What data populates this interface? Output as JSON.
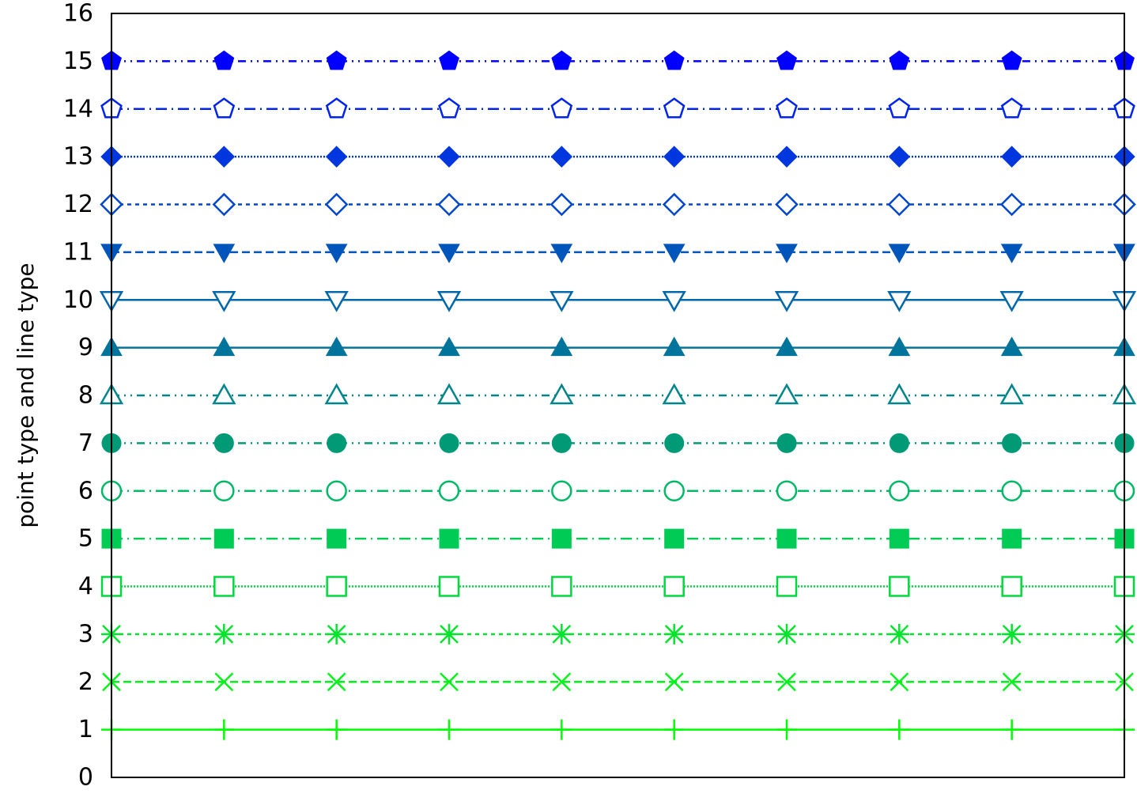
{
  "chart_data": {
    "type": "line",
    "title": "",
    "xlabel": "",
    "ylabel": "point type and line type",
    "x": [
      1,
      2,
      3,
      4,
      5,
      6,
      7,
      8,
      9,
      10
    ],
    "xlim": [
      1,
      10
    ],
    "ylim": [
      0,
      16
    ],
    "yticks": [
      0,
      1,
      2,
      3,
      4,
      5,
      6,
      7,
      8,
      9,
      10,
      11,
      12,
      13,
      14,
      15,
      16
    ],
    "grid": false,
    "legend": "none",
    "series": [
      {
        "value": 1,
        "marker": "plus",
        "dash": "solid",
        "color": "#00ff00"
      },
      {
        "value": 2,
        "marker": "cross",
        "dash": "dashed",
        "color": "#00f218"
      },
      {
        "value": 3,
        "marker": "asterisk",
        "dash": "short-dash",
        "color": "#00e52b"
      },
      {
        "value": 4,
        "marker": "square-open",
        "dash": "dotted",
        "color": "#00d93e"
      },
      {
        "value": 5,
        "marker": "square-filled",
        "dash": "dash-dot",
        "color": "#00cc55"
      },
      {
        "value": 6,
        "marker": "circle-open",
        "dash": "dash-dot",
        "color": "#00b966"
      },
      {
        "value": 7,
        "marker": "circle-filled",
        "dash": "dash-dot-dot",
        "color": "#009a77"
      },
      {
        "value": 8,
        "marker": "triangle-up-open",
        "dash": "dash-dot-dot",
        "color": "#00858a"
      },
      {
        "value": 9,
        "marker": "triangle-up-filled",
        "dash": "solid",
        "color": "#00749a"
      },
      {
        "value": 10,
        "marker": "triangle-down-open",
        "dash": "solid",
        "color": "#0068aa"
      },
      {
        "value": 11,
        "marker": "triangle-down-filled",
        "dash": "dashed",
        "color": "#0055bb"
      },
      {
        "value": 12,
        "marker": "diamond-open",
        "dash": "short-dash",
        "color": "#0047cc"
      },
      {
        "value": 13,
        "marker": "diamond-filled",
        "dash": "dotted",
        "color": "#0036dd"
      },
      {
        "value": 14,
        "marker": "pentagon-open",
        "dash": "dash-dot",
        "color": "#0024ee"
      },
      {
        "value": 15,
        "marker": "pentagon-filled",
        "dash": "dash-dot-dot",
        "color": "#0000ff"
      }
    ]
  }
}
